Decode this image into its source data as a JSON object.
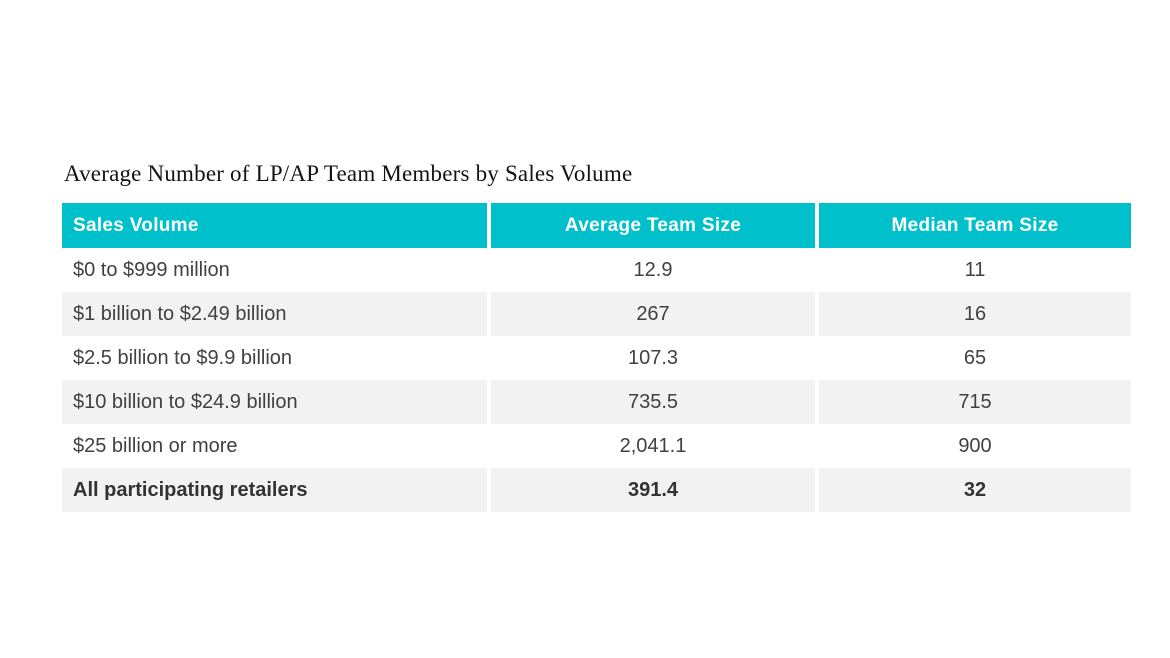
{
  "page": {
    "title": "Average Number of LP/AP Team Members by Sales Volume"
  },
  "table": {
    "columns": [
      "Sales Volume",
      "Average Team Size",
      "Median Team Size"
    ],
    "rows": [
      [
        "$0 to $999 million",
        "12.9",
        "11"
      ],
      [
        "$1 billion to $2.49 billion",
        "267",
        "16"
      ],
      [
        "$2.5 billion to $9.9 billion",
        "107.3",
        "65"
      ],
      [
        "$10 billion to $24.9 billion",
        "735.5",
        "715"
      ],
      [
        "$25 billion or more",
        "2,041.1",
        "900"
      ],
      [
        "All participating retailers",
        "391.4",
        "32"
      ]
    ]
  },
  "chart_data": {
    "type": "table",
    "title": "Average Number of LP/AP Team Members by Sales Volume",
    "columns": [
      "Sales Volume",
      "Average Team Size",
      "Median Team Size"
    ],
    "categories": [
      "$0 to $999 million",
      "$1 billion to $2.49 billion",
      "$2.5 billion to $9.9 billion",
      "$10 billion to $24.9 billion",
      "$25 billion or more",
      "All participating retailers"
    ],
    "series": [
      {
        "name": "Average Team Size",
        "values": [
          12.9,
          267,
          107.3,
          735.5,
          2041.1,
          391.4
        ]
      },
      {
        "name": "Median Team Size",
        "values": [
          11,
          16,
          65,
          715,
          900,
          32
        ]
      }
    ],
    "layout": {
      "header_row": true,
      "zebra_stripes": true,
      "total_row_bold": true
    }
  },
  "colors": {
    "header_bg": "#00C0CC",
    "header_text": "#FFFFFF",
    "row_alt_bg": "#F2F2F2",
    "body_text": "#414042"
  }
}
